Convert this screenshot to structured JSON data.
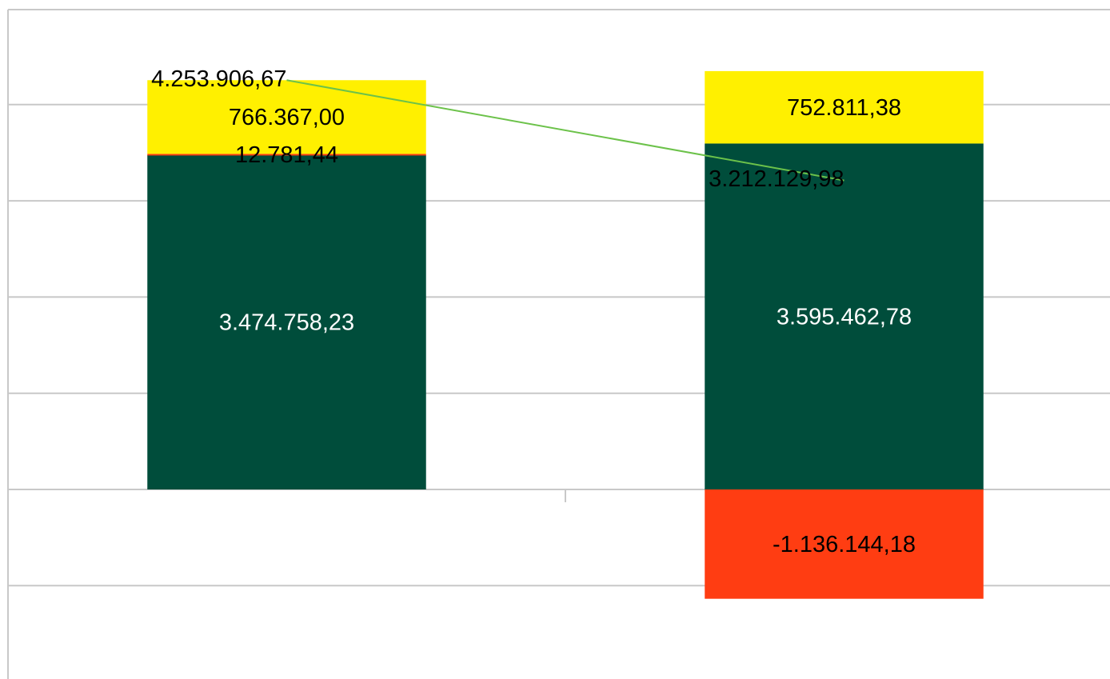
{
  "chart_data": {
    "type": "bar",
    "stacked": true,
    "categories": [
      null,
      null
    ],
    "series": [
      {
        "name": null,
        "type": "bar",
        "color": "#004d3b",
        "label_color": "#ffffff",
        "values": [
          3474758.23,
          3595462.78
        ],
        "value_labels": [
          "3.474.758,23",
          "3.595.462,78"
        ]
      },
      {
        "name": null,
        "type": "bar",
        "color": "#ff3d12",
        "label_color": "#000000",
        "values": [
          12781.44,
          -1136144.18
        ],
        "value_labels": [
          "12.781,44",
          "-1.136.144,18"
        ]
      },
      {
        "name": null,
        "type": "bar",
        "color": "#fff000",
        "label_color": "#000000",
        "values": [
          766367.0,
          752811.38
        ],
        "value_labels": [
          "766.367,00",
          "752.811,38"
        ]
      },
      {
        "name": null,
        "type": "line",
        "color": "#6cc24a",
        "label_color": "#000000",
        "values": [
          4253906.67,
          3212129.98
        ],
        "value_labels": [
          "4.253.906,67",
          "3.212.129,98"
        ]
      }
    ],
    "ylim": [
      -1970000,
      5000000
    ],
    "yticks": [
      -1000000,
      0,
      1000000,
      2000000,
      3000000,
      4000000
    ],
    "grid": true
  }
}
